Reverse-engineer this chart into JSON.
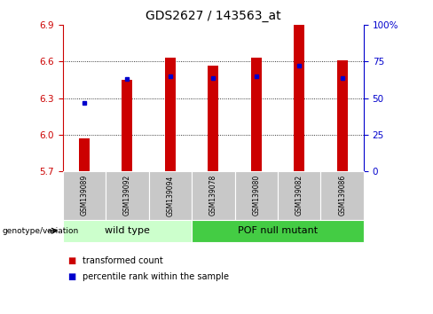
{
  "title": "GDS2627 / 143563_at",
  "samples": [
    "GSM139089",
    "GSM139092",
    "GSM139094",
    "GSM139078",
    "GSM139080",
    "GSM139082",
    "GSM139086"
  ],
  "transformed_counts": [
    5.97,
    6.45,
    6.63,
    6.57,
    6.63,
    6.9,
    6.61
  ],
  "percentile_ranks": [
    47,
    63,
    65,
    64,
    65,
    72,
    64
  ],
  "y_min": 5.7,
  "y_max": 6.9,
  "y_ticks_left": [
    5.7,
    6.0,
    6.3,
    6.6,
    6.9
  ],
  "y_ticks_right": [
    0,
    25,
    50,
    75,
    100
  ],
  "bar_color": "#cc0000",
  "dot_color": "#0000cc",
  "sample_bg": "#c8c8c8",
  "group_bg_wild": "#ccffcc",
  "group_bg_pof": "#44cc44",
  "legend_bar_label": "transformed count",
  "legend_dot_label": "percentile rank within the sample",
  "group_label": "genotype/variation",
  "wild_type_label": "wild type",
  "pof_label": "POF null mutant",
  "left_axis_color": "#cc0000",
  "right_axis_color": "#0000cc",
  "n_wild": 3,
  "n_pof": 4
}
